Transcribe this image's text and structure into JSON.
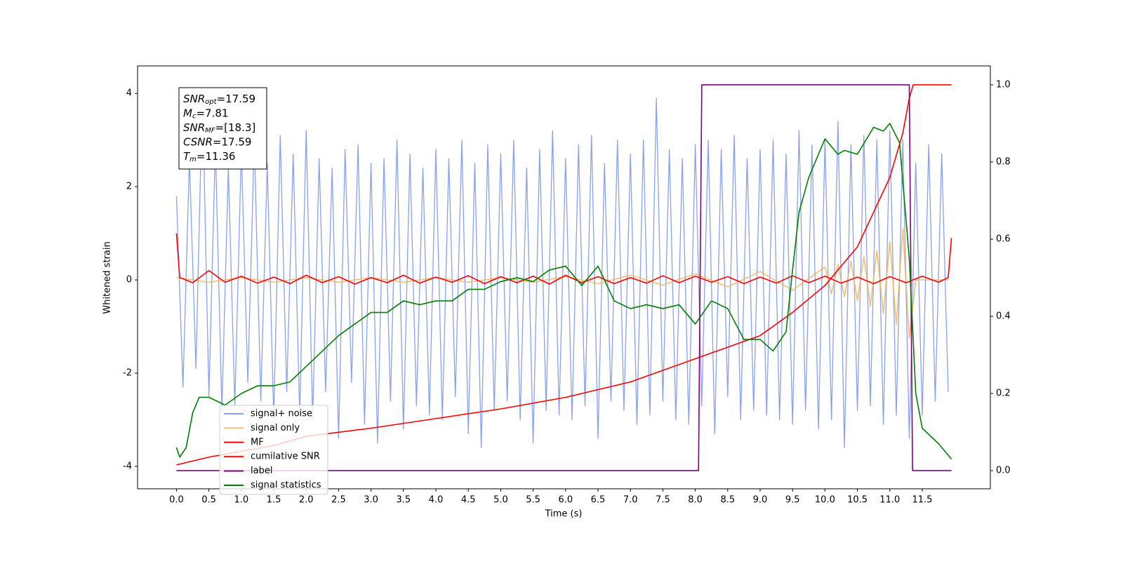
{
  "chart_data": {
    "type": "line",
    "xlabel": "Time (s)",
    "ylabel": "Whitened strain",
    "xlim": [
      -0.6,
      12.55
    ],
    "ylim": [
      -4.48,
      4.59
    ],
    "y2lim": [
      -0.047,
      1.049
    ],
    "xticks": [
      {
        "value": 0,
        "label": "0.0"
      },
      0.5,
      {
        "value": 1,
        "label": "1.0"
      },
      1.5,
      {
        "value": 2,
        "label": "2.0"
      },
      2.5,
      {
        "value": 3,
        "label": "3.0"
      },
      3.5,
      {
        "value": 4,
        "label": "4.0"
      },
      4.5,
      {
        "value": 5,
        "label": "5.0"
      },
      5.5,
      {
        "value": 6,
        "label": "6.0"
      },
      6.5,
      {
        "value": 7,
        "label": "7.0"
      },
      7.5,
      {
        "value": 8,
        "label": "8.0"
      },
      8.5,
      {
        "value": 9,
        "label": "9.0"
      },
      9.5,
      {
        "value": 10,
        "label": "10.0"
      },
      10.5,
      {
        "value": 11,
        "label": "11.0"
      },
      11.5
    ],
    "yticks": [
      -4,
      -2,
      0,
      2,
      4
    ],
    "y2ticks": [
      {
        "value": 0,
        "label": "0.0"
      },
      0.2,
      0.4,
      0.6,
      0.8,
      {
        "value": 1,
        "label": "1.0"
      }
    ],
    "legend": "lower left",
    "annotation": [
      {
        "main": "SNR",
        "sub": "opt",
        "rest": "=17.59"
      },
      {
        "main": "M",
        "sub": "c",
        "rest": "=7.81"
      },
      {
        "main": "SNR",
        "sub": "MF",
        "rest": "=[18.3]"
      },
      {
        "main": "CSNR",
        "sub": "",
        "rest": "=17.59"
      },
      {
        "main": "T",
        "sub": "m",
        "rest": "=11.36"
      }
    ],
    "series": [
      {
        "name": "signal+ noise",
        "color": "#7690e7",
        "axis": "y",
        "x": [
          0,
          0.1,
          0.2,
          0.3,
          0.4,
          0.5,
          0.6,
          0.7,
          0.8,
          0.9,
          1,
          1.1,
          1.2,
          1.3,
          1.4,
          1.5,
          1.6,
          1.7,
          1.8,
          1.9,
          2,
          2.1,
          2.2,
          2.3,
          2.4,
          2.5,
          2.6,
          2.7,
          2.8,
          2.9,
          3,
          3.1,
          3.2,
          3.3,
          3.4,
          3.5,
          3.6,
          3.7,
          3.8,
          3.9,
          4,
          4.1,
          4.2,
          4.3,
          4.4,
          4.5,
          4.6,
          4.7,
          4.8,
          4.9,
          5,
          5.1,
          5.2,
          5.3,
          5.4,
          5.5,
          5.6,
          5.7,
          5.8,
          5.9,
          6,
          6.1,
          6.2,
          6.3,
          6.4,
          6.5,
          6.6,
          6.7,
          6.8,
          6.9,
          7,
          7.1,
          7.2,
          7.3,
          7.4,
          7.5,
          7.6,
          7.7,
          7.8,
          7.9,
          8,
          8.1,
          8.2,
          8.3,
          8.4,
          8.5,
          8.6,
          8.7,
          8.8,
          8.9,
          9,
          9.1,
          9.2,
          9.3,
          9.4,
          9.5,
          9.6,
          9.7,
          9.8,
          9.9,
          10,
          10.1,
          10.2,
          10.3,
          10.4,
          10.5,
          10.6,
          10.7,
          10.8,
          10.9,
          11,
          11.1,
          11.2,
          11.3,
          11.4,
          11.5,
          11.6,
          11.7,
          11.8,
          11.9
        ],
        "values": [
          1.8,
          -2.3,
          2.6,
          -1.9,
          4.1,
          -2.5,
          2.9,
          -2.8,
          2.4,
          -2.7,
          2.8,
          -2.2,
          3.0,
          -2.6,
          2.5,
          -3.0,
          3.1,
          -2.4,
          2.7,
          -2.9,
          3.2,
          -3.0,
          2.6,
          -2.4,
          2.4,
          -3.4,
          2.8,
          -2.2,
          2.9,
          -3.1,
          2.5,
          -3.5,
          2.6,
          -2.6,
          3.0,
          -3.2,
          2.7,
          -2.7,
          2.4,
          -2.9,
          2.8,
          -3.0,
          2.6,
          -2.5,
          3.0,
          -3.3,
          2.5,
          -3.6,
          2.9,
          -2.8,
          2.7,
          -2.6,
          3.0,
          -3.0,
          2.4,
          -3.5,
          2.8,
          -2.8,
          3.2,
          -2.9,
          2.6,
          -3.0,
          2.9,
          -2.7,
          3.1,
          -3.4,
          2.5,
          -2.6,
          3.0,
          -2.8,
          2.7,
          -3.1,
          3.0,
          -2.9,
          3.9,
          -2.6,
          2.8,
          -3.0,
          2.6,
          -3.1,
          2.9,
          -2.7,
          3.0,
          -3.3,
          2.8,
          -2.5,
          3.1,
          -3.0,
          2.6,
          -2.8,
          2.8,
          -2.9,
          3.0,
          -3.0,
          2.7,
          -3.1,
          3.2,
          -2.8,
          2.9,
          -3.2,
          3.0,
          -3.0,
          3.4,
          -3.6,
          2.9,
          -2.8,
          3.1,
          -2.7,
          3.0,
          -3.1,
          3.2,
          -2.9,
          3.0,
          -3.4,
          2.5,
          -2.9,
          2.9,
          -2.6,
          2.7,
          -2.4
        ]
      },
      {
        "name": "signal only",
        "color": "#f5b455",
        "axis": "y",
        "x": [
          0,
          0.5,
          1,
          1.5,
          2,
          2.5,
          3,
          3.5,
          4,
          4.5,
          5,
          5.5,
          6,
          6.5,
          7,
          7.5,
          8,
          8.5,
          9,
          9.5,
          10,
          10.1,
          10.2,
          10.3,
          10.4,
          10.5,
          10.6,
          10.7,
          10.8,
          10.9,
          11,
          11.1,
          11.2,
          11.3,
          11.4,
          11.5,
          11.6,
          11.7,
          11.8,
          11.9
        ],
        "values": [
          0.05,
          -0.05,
          0.05,
          -0.05,
          0.05,
          -0.05,
          0.05,
          -0.05,
          0.05,
          -0.05,
          0.05,
          -0.05,
          0.07,
          -0.08,
          0.1,
          -0.11,
          0.13,
          -0.15,
          0.18,
          -0.22,
          0.28,
          -0.3,
          0.33,
          -0.36,
          0.4,
          -0.44,
          0.5,
          -0.56,
          0.63,
          -0.72,
          0.82,
          -0.95,
          1.1,
          -1.25,
          0,
          0,
          0,
          0,
          0,
          0
        ]
      },
      {
        "name": "MF",
        "color": "#ff0000",
        "axis": "y",
        "x": [
          0,
          0.05,
          0.25,
          0.5,
          0.75,
          1,
          1.25,
          1.5,
          1.75,
          2,
          2.25,
          2.5,
          2.75,
          3,
          3.25,
          3.5,
          3.75,
          4,
          4.25,
          4.5,
          4.75,
          5,
          5.25,
          5.5,
          5.75,
          6,
          6.25,
          6.5,
          6.75,
          7,
          7.25,
          7.5,
          7.75,
          8,
          8.25,
          8.5,
          8.75,
          9,
          9.25,
          9.5,
          9.75,
          10,
          10.25,
          10.5,
          10.75,
          11,
          11.25,
          11.5,
          11.75,
          11.9,
          11.95
        ],
        "values": [
          1.0,
          0.05,
          -0.06,
          0.2,
          -0.05,
          0.08,
          -0.07,
          0.06,
          -0.08,
          0.1,
          -0.06,
          0.07,
          -0.09,
          0.05,
          -0.06,
          0.1,
          -0.07,
          0.06,
          -0.05,
          0.09,
          -0.08,
          0.07,
          -0.06,
          0.08,
          -0.09,
          0.1,
          -0.06,
          0.07,
          -0.08,
          0.05,
          -0.07,
          0.09,
          -0.06,
          0.08,
          -0.05,
          0.07,
          -0.08,
          0.06,
          -0.07,
          0.09,
          -0.06,
          0.08,
          -0.07,
          0.06,
          -0.08,
          0.07,
          -0.06,
          0.08,
          -0.05,
          0.05,
          0.9
        ]
      },
      {
        "name": "cumilative SNR",
        "color": "#ff0000",
        "axis": "y2",
        "x": [
          0,
          0.5,
          1,
          1.5,
          2,
          3,
          4,
          5,
          6,
          7,
          8,
          8.5,
          9,
          9.5,
          10,
          10.5,
          11,
          11.2,
          11.3,
          11.36,
          11.95
        ],
        "values": [
          0.015,
          0.035,
          0.05,
          0.065,
          0.089,
          0.11,
          0.135,
          0.16,
          0.19,
          0.23,
          0.29,
          0.32,
          0.35,
          0.41,
          0.48,
          0.58,
          0.76,
          0.875,
          0.965,
          1.0,
          1.0
        ]
      },
      {
        "name": "label",
        "color": "#800080",
        "axis": "y2",
        "x": [
          0,
          8.05,
          8.1,
          11.3,
          11.35,
          11.95
        ],
        "values": [
          0,
          0,
          1,
          1,
          0,
          0
        ]
      },
      {
        "name": "signal statistics",
        "color": "#008000",
        "axis": "y2",
        "x": [
          0,
          0.05,
          0.15,
          0.25,
          0.35,
          0.5,
          0.75,
          1,
          1.25,
          1.5,
          1.75,
          2,
          2.25,
          2.5,
          2.75,
          3,
          3.25,
          3.5,
          3.75,
          4,
          4.25,
          4.5,
          4.75,
          5,
          5.25,
          5.5,
          5.75,
          6,
          6.25,
          6.5,
          6.75,
          7,
          7.25,
          7.5,
          7.75,
          8,
          8.25,
          8.5,
          8.75,
          9,
          9.2,
          9.4,
          9.5,
          9.6,
          9.75,
          10,
          10.2,
          10.3,
          10.5,
          10.75,
          10.9,
          11,
          11.15,
          11.3,
          11.4,
          11.5,
          11.75,
          11.95
        ],
        "values": [
          0.06,
          0.035,
          0.06,
          0.15,
          0.19,
          0.19,
          0.17,
          0.2,
          0.22,
          0.22,
          0.23,
          0.27,
          0.31,
          0.35,
          0.38,
          0.41,
          0.41,
          0.44,
          0.43,
          0.44,
          0.44,
          0.47,
          0.47,
          0.49,
          0.5,
          0.49,
          0.52,
          0.53,
          0.48,
          0.53,
          0.44,
          0.42,
          0.43,
          0.42,
          0.43,
          0.38,
          0.44,
          0.42,
          0.34,
          0.34,
          0.31,
          0.36,
          0.52,
          0.67,
          0.76,
          0.86,
          0.82,
          0.83,
          0.82,
          0.89,
          0.88,
          0.9,
          0.85,
          0.55,
          0.2,
          0.11,
          0.07,
          0.03
        ]
      }
    ]
  }
}
